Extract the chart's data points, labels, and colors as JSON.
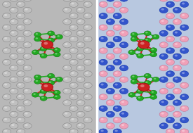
{
  "fig_width": 2.75,
  "fig_height": 1.89,
  "dpi": 100,
  "carbon_color": "#c0c0c0",
  "carbon_edge": "#888888",
  "nitrogen_color": "#3355cc",
  "nitrogen_edge": "#1133aa",
  "boron_color": "#f0a0b8",
  "boron_edge": "#c07898",
  "iron_color": "#cc2222",
  "iron_edge": "#991111",
  "cp_color": "#22aa22",
  "cp_edge": "#117711",
  "white_atom_color": "#e8e8e8",
  "left_bg": "#b8b8b8",
  "right_bg": "#b8c8e0",
  "r_small": 0.022,
  "r_fe": 0.03,
  "r_cp": 0.016
}
